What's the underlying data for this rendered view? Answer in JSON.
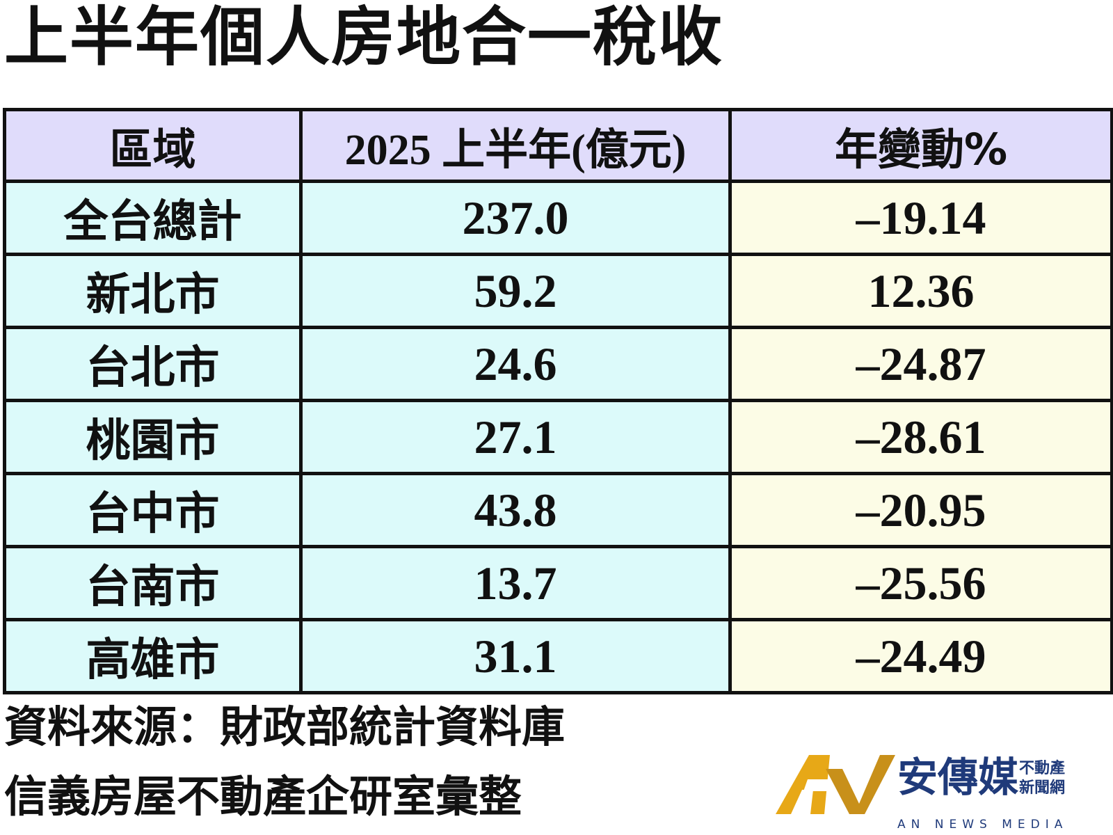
{
  "header": {
    "title": "上半年個人房地合一稅收"
  },
  "table": {
    "columns": [
      "區域",
      "2025 上半年(億元)",
      "年變動%"
    ],
    "rows": [
      [
        "全台總計",
        "237.0",
        "–19.14"
      ],
      [
        "新北市",
        "59.2",
        "12.36"
      ],
      [
        "台北市",
        "24.6",
        "–24.87"
      ],
      [
        "桃園市",
        "27.1",
        "–28.61"
      ],
      [
        "台中市",
        "43.8",
        "–20.95"
      ],
      [
        "台南市",
        "13.7",
        "–25.56"
      ],
      [
        "高雄市",
        "31.1",
        "–24.49"
      ]
    ]
  },
  "footer": {
    "lines": [
      "資料來源：財政部統計資料庫",
      "信義房屋不動產企研室彙整"
    ]
  },
  "logo": {
    "name": "安傳媒",
    "tag1": "不動產",
    "tag2": "新聞網",
    "subtitle": "AN NEWS MEDIA"
  }
}
